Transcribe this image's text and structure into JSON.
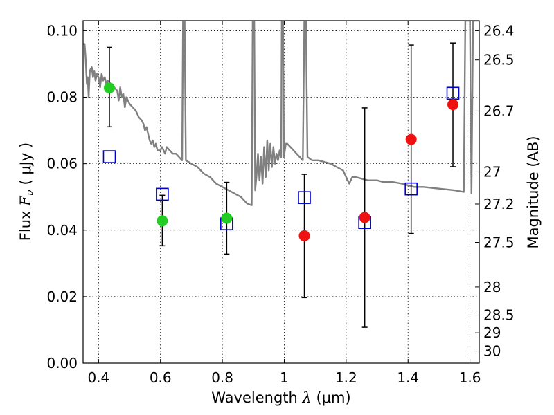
{
  "chart_data": {
    "type": "scatter",
    "xlabel_prefix": "Wavelength  ",
    "xlabel_symbol": "λ",
    "xlabel_suffix": " (μm)",
    "ylabel_prefix": "Flux  ",
    "ylabel_symbol": "F",
    "ylabel_sub": "ν",
    "ylabel_suffix": "  ( μJy )",
    "y2label": "Magnitude (AB)",
    "xlim": [
      0.35,
      1.63
    ],
    "ylim": [
      0.0,
      0.103
    ],
    "grid": true,
    "x_ticks": [
      {
        "value": 0.4,
        "label": "0.4"
      },
      {
        "value": 0.6,
        "label": "0.6"
      },
      {
        "value": 0.8,
        "label": "0.8"
      },
      {
        "value": 1.0,
        "label": "1"
      },
      {
        "value": 1.2,
        "label": "1.2"
      },
      {
        "value": 1.4,
        "label": "1.4"
      },
      {
        "value": 1.6,
        "label": "1.6"
      }
    ],
    "y_ticks": [
      {
        "value": 0.0,
        "label": "0.00"
      },
      {
        "value": 0.02,
        "label": "0.02"
      },
      {
        "value": 0.04,
        "label": "0.04"
      },
      {
        "value": 0.06,
        "label": "0.06"
      },
      {
        "value": 0.08,
        "label": "0.08"
      },
      {
        "value": 0.1,
        "label": "0.10"
      }
    ],
    "mag_ticks": [
      {
        "mag": 26.4,
        "label": "26.4"
      },
      {
        "mag": 26.5,
        "label": "26.5"
      },
      {
        "mag": 26.7,
        "label": "26.7"
      },
      {
        "mag": 27.0,
        "label": "27"
      },
      {
        "mag": 27.2,
        "label": "27.2"
      },
      {
        "mag": 27.5,
        "label": "27.5"
      },
      {
        "mag": 28.0,
        "label": "28"
      },
      {
        "mag": 28.5,
        "label": "28.5"
      },
      {
        "mag": 29.0,
        "label": "29"
      },
      {
        "mag": 30.0,
        "label": "30"
      }
    ],
    "mag_zero_point": 23.9,
    "colors": {
      "green": "#22cc22",
      "red": "#ee1111",
      "model": "#0000cc",
      "sed": "#808080",
      "errorbar": "#000000"
    },
    "observed_green": [
      {
        "x": 0.435,
        "y": 0.0828,
        "err_low": 0.0117,
        "err_high": 0.0122
      },
      {
        "x": 0.606,
        "y": 0.0428,
        "err_low": 0.0075,
        "err_high": 0.0077
      },
      {
        "x": 0.814,
        "y": 0.0436,
        "err_low": 0.0108,
        "err_high": 0.0108
      }
    ],
    "observed_red": [
      {
        "x": 1.065,
        "y": 0.0383,
        "err_low": 0.0186,
        "err_high": 0.0185
      },
      {
        "x": 1.26,
        "y": 0.0438,
        "err_low": 0.033,
        "err_high": 0.033
      },
      {
        "x": 1.41,
        "y": 0.0673,
        "err_low": 0.0283,
        "err_high": 0.0284
      },
      {
        "x": 1.545,
        "y": 0.0778,
        "err_low": 0.0187,
        "err_high": 0.0185
      }
    ],
    "model_photometry": [
      {
        "x": 0.435,
        "y": 0.0621
      },
      {
        "x": 0.606,
        "y": 0.0508
      },
      {
        "x": 0.814,
        "y": 0.0419
      },
      {
        "x": 1.065,
        "y": 0.0498
      },
      {
        "x": 1.26,
        "y": 0.0423
      },
      {
        "x": 1.41,
        "y": 0.0524
      },
      {
        "x": 1.545,
        "y": 0.0812
      }
    ],
    "sed_curve": [
      [
        0.35,
        0.096
      ],
      [
        0.355,
        0.096
      ],
      [
        0.358,
        0.092
      ],
      [
        0.362,
        0.084
      ],
      [
        0.365,
        0.086
      ],
      [
        0.368,
        0.08
      ],
      [
        0.372,
        0.088
      ],
      [
        0.378,
        0.089
      ],
      [
        0.382,
        0.086
      ],
      [
        0.386,
        0.088
      ],
      [
        0.39,
        0.085
      ],
      [
        0.395,
        0.087
      ],
      [
        0.4,
        0.086
      ],
      [
        0.405,
        0.083
      ],
      [
        0.41,
        0.087
      ],
      [
        0.415,
        0.085
      ],
      [
        0.42,
        0.086
      ],
      [
        0.425,
        0.084
      ],
      [
        0.43,
        0.085
      ],
      [
        0.44,
        0.084
      ],
      [
        0.45,
        0.083
      ],
      [
        0.46,
        0.082
      ],
      [
        0.465,
        0.079
      ],
      [
        0.47,
        0.083
      ],
      [
        0.475,
        0.08
      ],
      [
        0.48,
        0.081
      ],
      [
        0.485,
        0.077
      ],
      [
        0.49,
        0.08
      ],
      [
        0.495,
        0.079
      ],
      [
        0.5,
        0.078
      ],
      [
        0.51,
        0.077
      ],
      [
        0.52,
        0.076
      ],
      [
        0.53,
        0.074
      ],
      [
        0.54,
        0.073
      ],
      [
        0.545,
        0.072
      ],
      [
        0.55,
        0.07
      ],
      [
        0.555,
        0.071
      ],
      [
        0.56,
        0.069
      ],
      [
        0.565,
        0.067
      ],
      [
        0.57,
        0.066
      ],
      [
        0.575,
        0.067
      ],
      [
        0.58,
        0.065
      ],
      [
        0.585,
        0.066
      ],
      [
        0.59,
        0.064
      ],
      [
        0.6,
        0.064
      ],
      [
        0.605,
        0.065
      ],
      [
        0.61,
        0.064
      ],
      [
        0.615,
        0.063
      ],
      [
        0.62,
        0.065
      ],
      [
        0.63,
        0.064
      ],
      [
        0.64,
        0.063
      ],
      [
        0.65,
        0.063
      ],
      [
        0.66,
        0.062
      ],
      [
        0.67,
        0.061
      ],
      [
        0.673,
        0.103
      ],
      [
        0.678,
        0.103
      ],
      [
        0.682,
        0.061
      ],
      [
        0.7,
        0.06
      ],
      [
        0.72,
        0.059
      ],
      [
        0.74,
        0.057
      ],
      [
        0.76,
        0.056
      ],
      [
        0.78,
        0.054
      ],
      [
        0.8,
        0.053
      ],
      [
        0.82,
        0.052
      ],
      [
        0.84,
        0.051
      ],
      [
        0.86,
        0.05
      ],
      [
        0.88,
        0.048
      ],
      [
        0.895,
        0.0475
      ],
      [
        0.898,
        0.103
      ],
      [
        0.903,
        0.103
      ],
      [
        0.906,
        0.052
      ],
      [
        0.91,
        0.056
      ],
      [
        0.915,
        0.063
      ],
      [
        0.92,
        0.055
      ],
      [
        0.925,
        0.062
      ],
      [
        0.93,
        0.054
      ],
      [
        0.935,
        0.065
      ],
      [
        0.94,
        0.056
      ],
      [
        0.945,
        0.067
      ],
      [
        0.95,
        0.058
      ],
      [
        0.955,
        0.066
      ],
      [
        0.96,
        0.059
      ],
      [
        0.965,
        0.065
      ],
      [
        0.97,
        0.06
      ],
      [
        0.975,
        0.063
      ],
      [
        0.98,
        0.061
      ],
      [
        0.985,
        0.064
      ],
      [
        0.99,
        0.062
      ],
      [
        0.992,
        0.103
      ],
      [
        0.996,
        0.103
      ],
      [
        0.999,
        0.062
      ],
      [
        1.005,
        0.066
      ],
      [
        1.01,
        0.066
      ],
      [
        1.02,
        0.065
      ],
      [
        1.03,
        0.064
      ],
      [
        1.04,
        0.063
      ],
      [
        1.05,
        0.062
      ],
      [
        1.06,
        0.061
      ],
      [
        1.065,
        0.103
      ],
      [
        1.07,
        0.103
      ],
      [
        1.075,
        0.062
      ],
      [
        1.09,
        0.061
      ],
      [
        1.11,
        0.061
      ],
      [
        1.13,
        0.0605
      ],
      [
        1.15,
        0.06
      ],
      [
        1.17,
        0.059
      ],
      [
        1.19,
        0.058
      ],
      [
        1.2,
        0.056
      ],
      [
        1.21,
        0.054
      ],
      [
        1.22,
        0.056
      ],
      [
        1.23,
        0.056
      ],
      [
        1.25,
        0.0555
      ],
      [
        1.27,
        0.055
      ],
      [
        1.3,
        0.055
      ],
      [
        1.32,
        0.0545
      ],
      [
        1.35,
        0.0545
      ],
      [
        1.38,
        0.054
      ],
      [
        1.4,
        0.0535
      ],
      [
        1.42,
        0.053
      ],
      [
        1.45,
        0.053
      ],
      [
        1.5,
        0.0525
      ],
      [
        1.55,
        0.052
      ],
      [
        1.58,
        0.0515
      ],
      [
        1.585,
        0.103
      ],
      [
        1.6,
        0.103
      ],
      [
        1.605,
        0.051
      ],
      [
        1.61,
        0.103
      ],
      [
        1.63,
        0.103
      ]
    ]
  }
}
